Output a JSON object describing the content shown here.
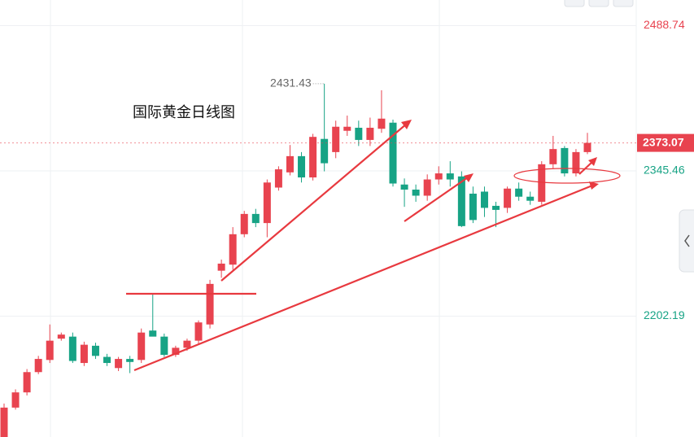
{
  "chart_data": {
    "type": "candlestick",
    "title": "国际黄金日线图",
    "open": [
      2083,
      2112,
      2127,
      2147,
      2159,
      2180,
      2182,
      2156,
      2173,
      2162,
      2151,
      2160,
      2159,
      2188,
      2182,
      2164,
      2171,
      2178,
      2194,
      2247,
      2253,
      2283,
      2303,
      2294,
      2329,
      2344,
      2360,
      2339,
      2377,
      2364,
      2385,
      2388,
      2376,
      2387,
      2393,
      2332,
      2327,
      2321,
      2337,
      2343,
      2340,
      2323,
      2325,
      2311,
      2309,
      2328,
      2320,
      2315,
      2352,
      2368,
      2343,
      2364
    ],
    "high": [
      2116,
      2130,
      2150,
      2163,
      2194,
      2186,
      2186,
      2177,
      2176,
      2165,
      2162,
      2163,
      2190,
      2225,
      2185,
      2173,
      2180,
      2198,
      2238,
      2258,
      2290,
      2306,
      2308,
      2337,
      2350,
      2371,
      2364,
      2382,
      2431.43,
      2395,
      2400,
      2395,
      2398,
      2425,
      2396,
      2338,
      2332,
      2342,
      2350,
      2355,
      2345,
      2330,
      2330,
      2315,
      2330,
      2334,
      2325,
      2355,
      2380,
      2370,
      2367,
      2383
    ],
    "low": [
      2083,
      2110,
      2124,
      2145,
      2156,
      2178,
      2156,
      2153,
      2160,
      2153,
      2148,
      2146,
      2156,
      2185,
      2162,
      2162,
      2168,
      2175,
      2190,
      2240,
      2248,
      2280,
      2290,
      2280,
      2326,
      2341,
      2334,
      2336,
      2345,
      2358,
      2380,
      2370,
      2370,
      2383,
      2330,
      2310,
      2315,
      2316,
      2332,
      2330,
      2290,
      2294,
      2300,
      2290,
      2304,
      2316,
      2312,
      2312,
      2348,
      2340,
      2340,
      2362
    ],
    "close": [
      2112,
      2127,
      2147,
      2160,
      2178,
      2184,
      2158,
      2174,
      2163,
      2156,
      2160,
      2157,
      2186,
      2182,
      2164,
      2171,
      2178,
      2196,
      2234,
      2254,
      2283,
      2303,
      2294,
      2334,
      2347,
      2360,
      2339,
      2379,
      2353,
      2389,
      2389,
      2376,
      2388,
      2397,
      2333,
      2327,
      2321,
      2337,
      2343,
      2337,
      2291,
      2297,
      2309,
      2307,
      2328,
      2320,
      2316,
      2352,
      2367,
      2343,
      2364,
      2373.07
    ],
    "up_color": "#e8434f",
    "down_color": "#17a385",
    "ylim": [
      2083,
      2514
    ],
    "yticks": [
      2202.19,
      2345.46,
      2488.74
    ],
    "ytick_colors": [
      "#17a385",
      "#17a385",
      "#e8434f"
    ],
    "last_price": 2373.07,
    "annotation": "2431.43",
    "grid": true
  }
}
